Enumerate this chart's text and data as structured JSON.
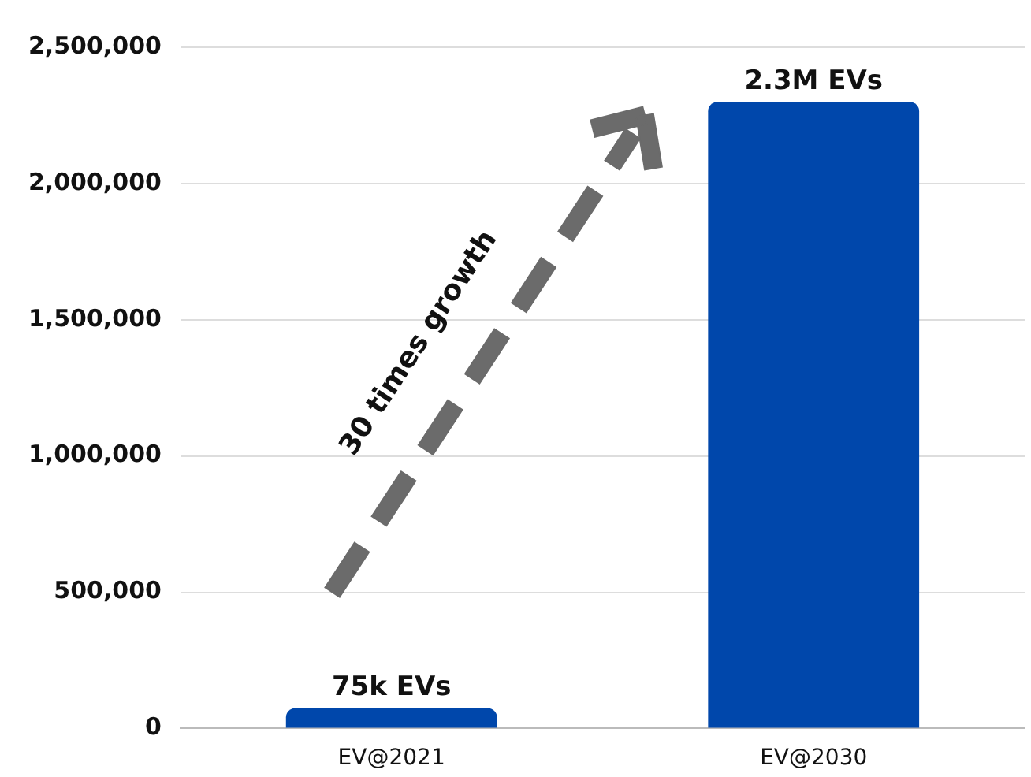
{
  "chart_data": {
    "type": "bar",
    "categories": [
      "EV@2021",
      "EV@2030"
    ],
    "values": [
      75000,
      2300000
    ],
    "color": "#0047ab",
    "value_labels": [
      "75k EVs",
      "2.3M EVs"
    ],
    "ylim": [
      0,
      2500000
    ],
    "yticks": [
      0,
      {
        "value": 500000,
        "label": "500,000"
      },
      {
        "value": 1000000,
        "label": "1,000,000"
      },
      {
        "value": 1500000,
        "label": "1,500,000"
      },
      {
        "value": 2000000,
        "label": "2,000,000"
      },
      {
        "value": 2500000,
        "label": "2,500,000"
      }
    ],
    "grid": "y",
    "legend": false,
    "annotations": [
      "30 times growth"
    ]
  }
}
